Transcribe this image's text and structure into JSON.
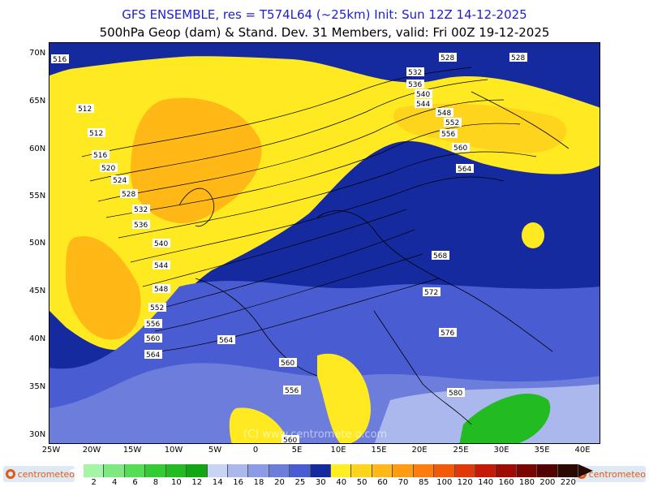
{
  "header": {
    "line1": "GFS ENSEMBLE, res = T574L64 (~25km)    Init: Sun 12Z 14-12-2025",
    "line2": "500hPa Geop (dam) & Stand. Dev.    31 Members, valid: Fri 00Z 19-12-2025"
  },
  "map": {
    "lat_labels": [
      "70N",
      "65N",
      "60N",
      "55N",
      "50N",
      "45N",
      "40N",
      "35N",
      "30N"
    ],
    "lon_labels": [
      "25W",
      "20W",
      "15W",
      "10W",
      "5W",
      "0",
      "5E",
      "10E",
      "15E",
      "20E",
      "25E",
      "30E",
      "35E",
      "40E"
    ],
    "contour_labels": [
      "516",
      "512",
      "512",
      "516",
      "520",
      "524",
      "528",
      "532",
      "536",
      "540",
      "544",
      "548",
      "552",
      "556",
      "560",
      "564",
      "528",
      "528",
      "532",
      "536",
      "540",
      "544",
      "548",
      "552",
      "556",
      "560",
      "564",
      "568",
      "572",
      "576",
      "580",
      "564",
      "560",
      "556",
      "560"
    ],
    "watermark": "(C) www.centromete o.com"
  },
  "colorbar": {
    "labels": [
      "2",
      "4",
      "6",
      "8",
      "10",
      "12",
      "14",
      "16",
      "18",
      "20",
      "25",
      "30",
      "40",
      "50",
      "60",
      "70",
      "85",
      "100",
      "120",
      "140",
      "160",
      "180",
      "200",
      "220"
    ],
    "colors": [
      "#a6f5a6",
      "#7ee97e",
      "#55dd55",
      "#33cc33",
      "#22bb22",
      "#12a612",
      "#c8d4f4",
      "#aab8ee",
      "#8c9be6",
      "#6d7ddc",
      "#4a5cd2",
      "#142a9e",
      "#ffee22",
      "#ffd41c",
      "#ffb816",
      "#ff9c12",
      "#ff7d0e",
      "#f25a0a",
      "#e03808",
      "#c41a06",
      "#a00c04",
      "#7a0602",
      "#520200",
      "#2a0a00"
    ]
  },
  "logos": {
    "left": "centrometeo",
    "right": "centrometeo"
  }
}
